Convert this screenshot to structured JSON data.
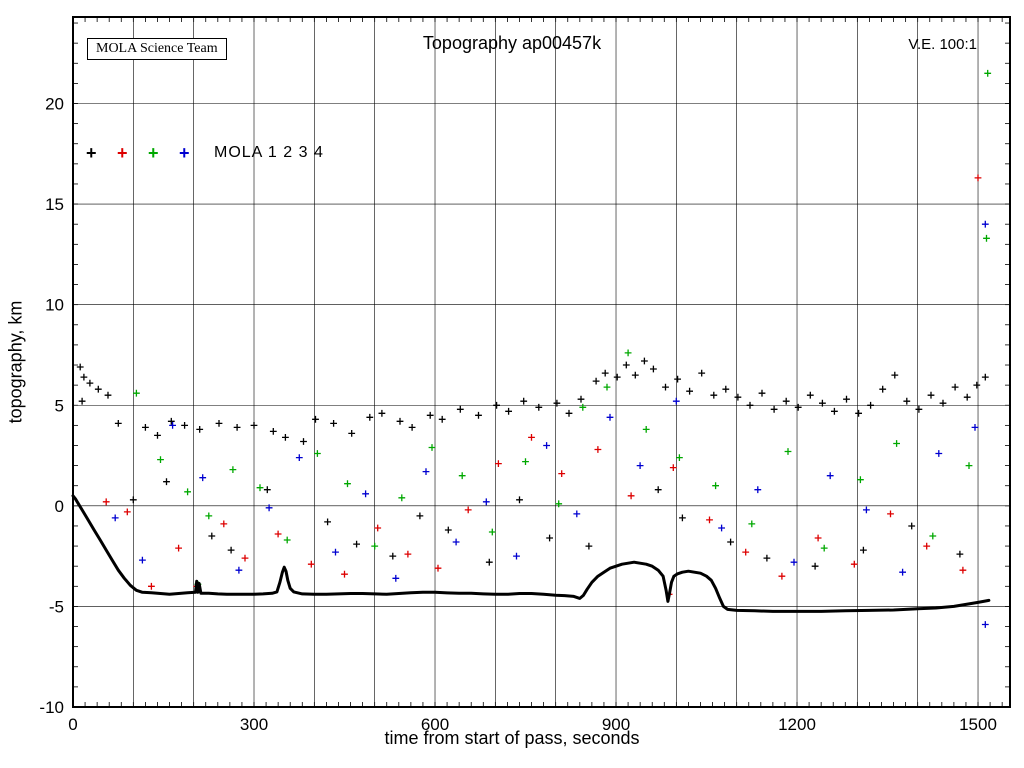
{
  "header": {
    "title": "Topography ap00457k",
    "team_label": "MOLA Science Team",
    "ve_label": "V.E. 100:1"
  },
  "legend": {
    "marker": "+",
    "label": "MOLA 1 2 3 4",
    "colors": [
      "#000000",
      "#dd0000",
      "#00a800",
      "#0000d0"
    ]
  },
  "chart_data": {
    "type": "scatter",
    "title": "Topography ap00457k",
    "xlabel": "time from start of pass, seconds",
    "ylabel": "topography, km",
    "xlim": [
      0,
      1553
    ],
    "ylim": [
      -10,
      24.3
    ],
    "x_ticks": [
      0,
      300,
      600,
      900,
      1200,
      1500
    ],
    "x_gridlines": [
      0,
      100,
      200,
      300,
      400,
      500,
      600,
      700,
      800,
      900,
      1000,
      1100,
      1200,
      1300,
      1400,
      1500
    ],
    "y_ticks": [
      -10,
      -5,
      0,
      5,
      10,
      15,
      20
    ],
    "grid": true,
    "profile": {
      "name": "surface topography profile",
      "color": "#000000",
      "points": [
        [
          0,
          0.5
        ],
        [
          4,
          0.35
        ],
        [
          8,
          0.15
        ],
        [
          15,
          -0.2
        ],
        [
          25,
          -0.7
        ],
        [
          35,
          -1.2
        ],
        [
          45,
          -1.7
        ],
        [
          55,
          -2.2
        ],
        [
          65,
          -2.7
        ],
        [
          75,
          -3.2
        ],
        [
          85,
          -3.6
        ],
        [
          95,
          -3.95
        ],
        [
          105,
          -4.2
        ],
        [
          115,
          -4.3
        ],
        [
          130,
          -4.32
        ],
        [
          145,
          -4.36
        ],
        [
          160,
          -4.4
        ],
        [
          175,
          -4.36
        ],
        [
          190,
          -4.32
        ],
        [
          203,
          -4.3
        ],
        [
          205,
          -3.75
        ],
        [
          207,
          -4.3
        ],
        [
          209,
          -3.85
        ],
        [
          212,
          -4.35
        ],
        [
          225,
          -4.35
        ],
        [
          240,
          -4.38
        ],
        [
          255,
          -4.4
        ],
        [
          270,
          -4.4
        ],
        [
          285,
          -4.4
        ],
        [
          300,
          -4.4
        ],
        [
          315,
          -4.38
        ],
        [
          330,
          -4.35
        ],
        [
          338,
          -4.28
        ],
        [
          343,
          -3.8
        ],
        [
          347,
          -3.3
        ],
        [
          350,
          -3.05
        ],
        [
          353,
          -3.25
        ],
        [
          356,
          -3.7
        ],
        [
          360,
          -4.1
        ],
        [
          366,
          -4.28
        ],
        [
          380,
          -4.38
        ],
        [
          400,
          -4.4
        ],
        [
          420,
          -4.4
        ],
        [
          440,
          -4.38
        ],
        [
          460,
          -4.36
        ],
        [
          480,
          -4.36
        ],
        [
          500,
          -4.38
        ],
        [
          520,
          -4.4
        ],
        [
          540,
          -4.36
        ],
        [
          560,
          -4.32
        ],
        [
          580,
          -4.3
        ],
        [
          600,
          -4.3
        ],
        [
          620,
          -4.33
        ],
        [
          640,
          -4.35
        ],
        [
          660,
          -4.35
        ],
        [
          680,
          -4.38
        ],
        [
          700,
          -4.4
        ],
        [
          720,
          -4.4
        ],
        [
          740,
          -4.36
        ],
        [
          760,
          -4.36
        ],
        [
          780,
          -4.4
        ],
        [
          800,
          -4.44
        ],
        [
          815,
          -4.46
        ],
        [
          830,
          -4.5
        ],
        [
          840,
          -4.6
        ],
        [
          846,
          -4.45
        ],
        [
          852,
          -4.15
        ],
        [
          860,
          -3.8
        ],
        [
          870,
          -3.5
        ],
        [
          880,
          -3.3
        ],
        [
          890,
          -3.1
        ],
        [
          900,
          -3.0
        ],
        [
          910,
          -2.9
        ],
        [
          920,
          -2.85
        ],
        [
          930,
          -2.8
        ],
        [
          940,
          -2.85
        ],
        [
          950,
          -2.9
        ],
        [
          960,
          -3.0
        ],
        [
          970,
          -3.2
        ],
        [
          978,
          -3.5
        ],
        [
          983,
          -4.2
        ],
        [
          986,
          -4.75
        ],
        [
          989,
          -4.3
        ],
        [
          992,
          -3.8
        ],
        [
          996,
          -3.5
        ],
        [
          1002,
          -3.38
        ],
        [
          1010,
          -3.3
        ],
        [
          1020,
          -3.25
        ],
        [
          1030,
          -3.3
        ],
        [
          1040,
          -3.35
        ],
        [
          1050,
          -3.5
        ],
        [
          1058,
          -3.7
        ],
        [
          1065,
          -4.1
        ],
        [
          1072,
          -4.6
        ],
        [
          1078,
          -5.0
        ],
        [
          1085,
          -5.15
        ],
        [
          1100,
          -5.2
        ],
        [
          1130,
          -5.22
        ],
        [
          1160,
          -5.25
        ],
        [
          1200,
          -5.25
        ],
        [
          1240,
          -5.25
        ],
        [
          1280,
          -5.22
        ],
        [
          1320,
          -5.2
        ],
        [
          1360,
          -5.18
        ],
        [
          1400,
          -5.12
        ],
        [
          1430,
          -5.08
        ],
        [
          1460,
          -5.0
        ],
        [
          1480,
          -4.9
        ],
        [
          1500,
          -4.8
        ],
        [
          1518,
          -4.7
        ]
      ]
    },
    "noise_series": [
      {
        "name": "MOLA 1",
        "color": "#000000",
        "points": [
          [
            12,
            6.9
          ],
          [
            18,
            6.4
          ],
          [
            28,
            6.1
          ],
          [
            42,
            5.8
          ],
          [
            58,
            5.5
          ],
          [
            15,
            5.2
          ],
          [
            75,
            4.1
          ],
          [
            100,
            0.3
          ],
          [
            120,
            3.9
          ],
          [
            140,
            3.5
          ],
          [
            155,
            1.2
          ],
          [
            163,
            4.2
          ],
          [
            185,
            4.0
          ],
          [
            210,
            3.8
          ],
          [
            230,
            -1.5
          ],
          [
            242,
            4.1
          ],
          [
            262,
            -2.2
          ],
          [
            272,
            3.9
          ],
          [
            300,
            4.0
          ],
          [
            322,
            0.8
          ],
          [
            332,
            3.7
          ],
          [
            352,
            3.4
          ],
          [
            382,
            3.2
          ],
          [
            402,
            4.3
          ],
          [
            422,
            -0.8
          ],
          [
            432,
            4.1
          ],
          [
            462,
            3.6
          ],
          [
            470,
            -1.9
          ],
          [
            492,
            4.4
          ],
          [
            512,
            4.6
          ],
          [
            530,
            -2.5
          ],
          [
            542,
            4.2
          ],
          [
            562,
            3.9
          ],
          [
            575,
            -0.5
          ],
          [
            592,
            4.5
          ],
          [
            612,
            4.3
          ],
          [
            622,
            -1.2
          ],
          [
            642,
            4.8
          ],
          [
            672,
            4.5
          ],
          [
            690,
            -2.8
          ],
          [
            702,
            5.0
          ],
          [
            722,
            4.7
          ],
          [
            740,
            0.3
          ],
          [
            747,
            5.2
          ],
          [
            772,
            4.9
          ],
          [
            790,
            -1.6
          ],
          [
            802,
            5.1
          ],
          [
            822,
            4.6
          ],
          [
            842,
            5.3
          ],
          [
            855,
            -2.0
          ],
          [
            867,
            6.2
          ],
          [
            882,
            6.6
          ],
          [
            902,
            6.4
          ],
          [
            917,
            7.0
          ],
          [
            932,
            6.5
          ],
          [
            947,
            7.2
          ],
          [
            962,
            6.8
          ],
          [
            970,
            0.8
          ],
          [
            982,
            5.9
          ],
          [
            1002,
            6.3
          ],
          [
            1010,
            -0.6
          ],
          [
            1022,
            5.7
          ],
          [
            1042,
            6.6
          ],
          [
            1062,
            5.5
          ],
          [
            1082,
            5.8
          ],
          [
            1090,
            -1.8
          ],
          [
            1102,
            5.4
          ],
          [
            1122,
            5.0
          ],
          [
            1142,
            5.6
          ],
          [
            1150,
            -2.6
          ],
          [
            1162,
            4.8
          ],
          [
            1182,
            5.2
          ],
          [
            1202,
            4.9
          ],
          [
            1222,
            5.5
          ],
          [
            1230,
            -3.0
          ],
          [
            1242,
            5.1
          ],
          [
            1262,
            4.7
          ],
          [
            1282,
            5.3
          ],
          [
            1302,
            4.6
          ],
          [
            1310,
            -2.2
          ],
          [
            1322,
            5.0
          ],
          [
            1342,
            5.8
          ],
          [
            1362,
            6.5
          ],
          [
            1382,
            5.2
          ],
          [
            1390,
            -1.0
          ],
          [
            1402,
            4.8
          ],
          [
            1422,
            5.5
          ],
          [
            1442,
            5.1
          ],
          [
            1462,
            5.9
          ],
          [
            1470,
            -2.4
          ],
          [
            1482,
            5.4
          ],
          [
            1498,
            6.0
          ],
          [
            1512,
            6.4
          ]
        ]
      },
      {
        "name": "MOLA 2",
        "color": "#dd0000",
        "points": [
          [
            55,
            0.2
          ],
          [
            90,
            -0.3
          ],
          [
            130,
            -4.0
          ],
          [
            175,
            -2.1
          ],
          [
            205,
            -4.0
          ],
          [
            250,
            -0.9
          ],
          [
            285,
            -2.6
          ],
          [
            340,
            -1.4
          ],
          [
            395,
            -2.9
          ],
          [
            450,
            -3.4
          ],
          [
            505,
            -1.1
          ],
          [
            555,
            -2.4
          ],
          [
            605,
            -3.1
          ],
          [
            655,
            -0.2
          ],
          [
            705,
            2.1
          ],
          [
            760,
            3.4
          ],
          [
            810,
            1.6
          ],
          [
            870,
            2.8
          ],
          [
            925,
            0.5
          ],
          [
            988,
            -4.4
          ],
          [
            995,
            1.9
          ],
          [
            1055,
            -0.7
          ],
          [
            1115,
            -2.3
          ],
          [
            1175,
            -3.5
          ],
          [
            1235,
            -1.6
          ],
          [
            1295,
            -2.9
          ],
          [
            1355,
            -0.4
          ],
          [
            1415,
            -2.0
          ],
          [
            1475,
            -3.2
          ],
          [
            1500,
            16.3
          ]
        ]
      },
      {
        "name": "MOLA 3",
        "color": "#00a800",
        "points": [
          [
            105,
            5.6
          ],
          [
            145,
            2.3
          ],
          [
            190,
            0.7
          ],
          [
            207,
            -3.9
          ],
          [
            225,
            -0.5
          ],
          [
            265,
            1.8
          ],
          [
            310,
            0.9
          ],
          [
            355,
            -1.7
          ],
          [
            405,
            2.6
          ],
          [
            455,
            1.1
          ],
          [
            500,
            -2.0
          ],
          [
            545,
            0.4
          ],
          [
            595,
            2.9
          ],
          [
            645,
            1.5
          ],
          [
            695,
            -1.3
          ],
          [
            750,
            2.2
          ],
          [
            805,
            0.1
          ],
          [
            845,
            4.9
          ],
          [
            885,
            5.9
          ],
          [
            920,
            7.6
          ],
          [
            950,
            3.8
          ],
          [
            1005,
            2.4
          ],
          [
            1065,
            1.0
          ],
          [
            1125,
            -0.9
          ],
          [
            1185,
            2.7
          ],
          [
            1245,
            -2.1
          ],
          [
            1305,
            1.3
          ],
          [
            1365,
            3.1
          ],
          [
            1425,
            -1.5
          ],
          [
            1485,
            2.0
          ],
          [
            1514,
            13.3
          ],
          [
            1516,
            21.5
          ]
        ]
      },
      {
        "name": "MOLA 4",
        "color": "#0000d0",
        "points": [
          [
            70,
            -0.6
          ],
          [
            115,
            -2.7
          ],
          [
            165,
            4.0
          ],
          [
            215,
            1.4
          ],
          [
            275,
            -3.2
          ],
          [
            325,
            -0.1
          ],
          [
            375,
            2.4
          ],
          [
            435,
            -2.3
          ],
          [
            485,
            0.6
          ],
          [
            535,
            -3.6
          ],
          [
            585,
            1.7
          ],
          [
            635,
            -1.8
          ],
          [
            685,
            0.2
          ],
          [
            735,
            -2.5
          ],
          [
            785,
            3.0
          ],
          [
            835,
            -0.4
          ],
          [
            890,
            4.4
          ],
          [
            940,
            2.0
          ],
          [
            1000,
            5.2
          ],
          [
            1075,
            -1.1
          ],
          [
            1135,
            0.8
          ],
          [
            1195,
            -2.8
          ],
          [
            1255,
            1.5
          ],
          [
            1315,
            -0.2
          ],
          [
            1375,
            -3.3
          ],
          [
            1435,
            2.6
          ],
          [
            1495,
            3.9
          ],
          [
            1512,
            14.0
          ],
          [
            1512,
            -5.9
          ]
        ]
      }
    ]
  }
}
